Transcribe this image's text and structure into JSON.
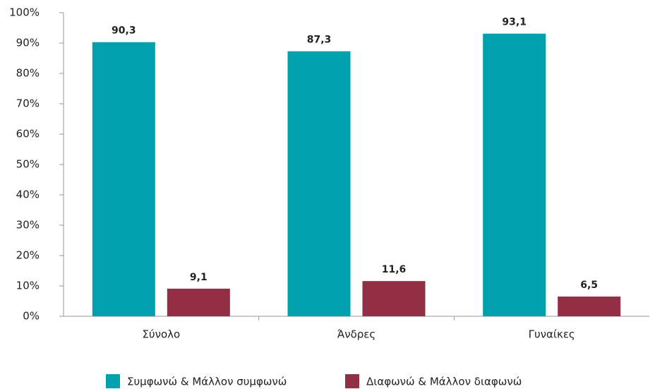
{
  "chart_data": {
    "type": "bar",
    "categories": [
      "Σύνολο",
      "Άνδρες",
      "Γυναίκες"
    ],
    "series": [
      {
        "name": "Συμφωνώ & Μάλλον συμφωνώ",
        "color": "#00a0ae",
        "values": [
          90.3,
          87.3,
          93.1
        ],
        "value_labels": [
          "90,3",
          "87,3",
          "93,1"
        ]
      },
      {
        "name": "Διαφωνώ & Μάλλον διαφωνώ",
        "color": "#932f45",
        "values": [
          9.1,
          11.6,
          6.5
        ],
        "value_labels": [
          "9,1",
          "11,6",
          "6,5"
        ]
      }
    ],
    "ylim": [
      0,
      100
    ],
    "yticks": [
      {
        "value": 0,
        "label": "0%"
      },
      {
        "value": 10,
        "label": "10%"
      },
      {
        "value": 20,
        "label": "20%"
      },
      {
        "value": 30,
        "label": "30%"
      },
      {
        "value": 40,
        "label": "40%"
      },
      {
        "value": 50,
        "label": "50%"
      },
      {
        "value": 60,
        "label": "60%"
      },
      {
        "value": 70,
        "label": "70%"
      },
      {
        "value": 80,
        "label": "80%"
      },
      {
        "value": 90,
        "label": "90%"
      },
      {
        "value": 100,
        "label": "100%"
      }
    ],
    "grid": false,
    "legend": "bottom"
  }
}
